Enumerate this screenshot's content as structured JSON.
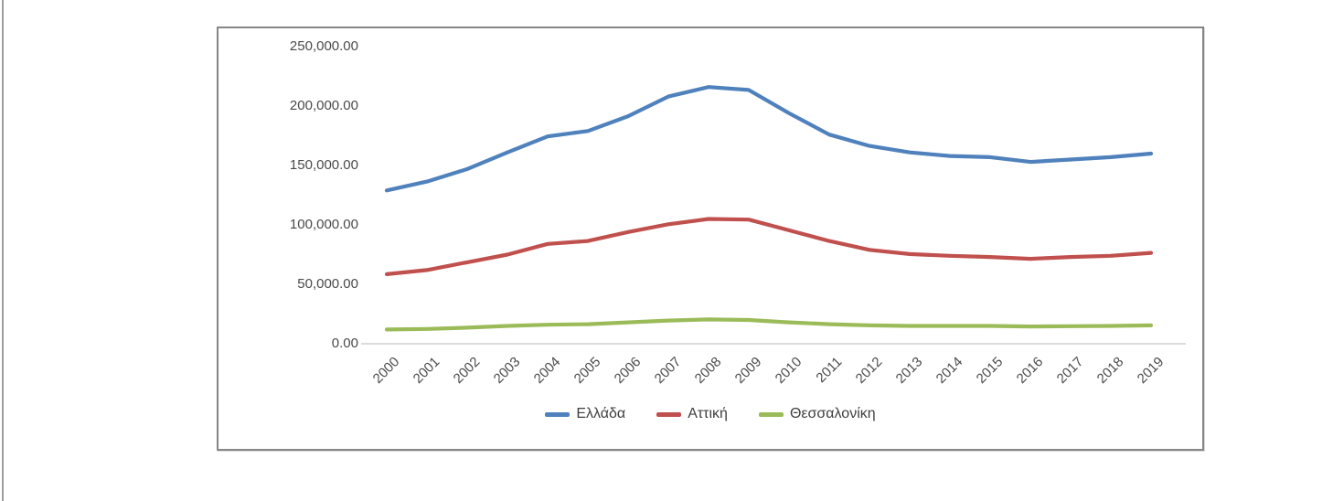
{
  "chart_data": {
    "type": "line",
    "title": "",
    "xlabel": "",
    "ylabel": "",
    "categories": [
      "2000",
      "2001",
      "2002",
      "2003",
      "2004",
      "2005",
      "2006",
      "2007",
      "2008",
      "2009",
      "2010",
      "2011",
      "2012",
      "2013",
      "2014",
      "2015",
      "2016",
      "2017",
      "2018",
      "2019"
    ],
    "series": [
      {
        "name": "Ελλάδα",
        "color": "#4F81BD",
        "values": [
          129000,
          136500,
          147000,
          161000,
          174500,
          179000,
          191500,
          208000,
          216000,
          213500,
          194000,
          176000,
          166500,
          161000,
          158000,
          157000,
          153000,
          155000,
          157000,
          160000
        ]
      },
      {
        "name": "Αττική",
        "color": "#C0504D",
        "values": [
          58500,
          62000,
          68500,
          75000,
          84000,
          86500,
          94000,
          100500,
          105000,
          104500,
          95500,
          86500,
          79000,
          75500,
          74000,
          73000,
          71500,
          73000,
          74000,
          76500
        ]
      },
      {
        "name": "Θεσσαλονίκη",
        "color": "#9BBB59",
        "values": [
          12000,
          12500,
          13500,
          15000,
          16000,
          16500,
          18000,
          19500,
          20500,
          20000,
          18000,
          16500,
          15500,
          15000,
          15000,
          15000,
          14500,
          14800,
          15000,
          15500
        ]
      }
    ],
    "ylim": [
      0,
      250000
    ],
    "ytick_step": 50000,
    "ytick_labels": [
      "0.00",
      "50,000.00",
      "100,000.00",
      "150,000.00",
      "200,000.00",
      "250,000.00"
    ],
    "grid": false,
    "legend_position": "bottom"
  }
}
